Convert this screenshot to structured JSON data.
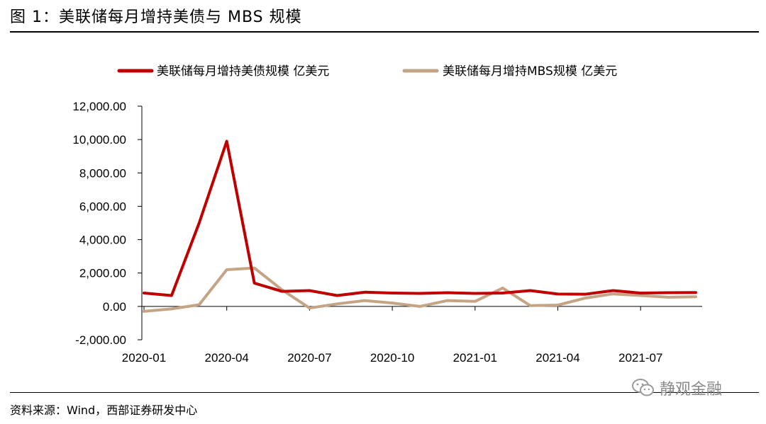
{
  "figure": {
    "title": "图 1：美联储每月增持美债与 MBS 规模",
    "source": "资料来源：Wind，西部证券研发中心",
    "watermark": "静观金融"
  },
  "chart_data": {
    "type": "line",
    "title": "",
    "xlabel": "",
    "ylabel": "",
    "ylim": [
      -2000,
      12000
    ],
    "yticks": [
      -2000,
      0,
      2000,
      4000,
      6000,
      8000,
      10000,
      12000
    ],
    "ytick_labels": [
      "-2,000.00",
      "0.00",
      "2,000.00",
      "4,000.00",
      "6,000.00",
      "8,000.00",
      "10,000.00",
      "12,000.00"
    ],
    "x": [
      "2020-01",
      "2020-02",
      "2020-03",
      "2020-04",
      "2020-05",
      "2020-06",
      "2020-07",
      "2020-08",
      "2020-09",
      "2020-10",
      "2020-11",
      "2020-12",
      "2021-01",
      "2021-02",
      "2021-03",
      "2021-04",
      "2021-05",
      "2021-06",
      "2021-07",
      "2021-08",
      "2021-09"
    ],
    "xtick_labels": [
      "2020-01",
      "2020-04",
      "2020-07",
      "2020-10",
      "2021-01",
      "2021-04",
      "2021-07"
    ],
    "legend_position": "top",
    "series": [
      {
        "name": "美联储每月增持美债规模 亿美元",
        "color": "#c00000",
        "values": [
          800,
          650,
          5000,
          9900,
          1400,
          900,
          950,
          650,
          850,
          800,
          780,
          820,
          780,
          800,
          950,
          740,
          730,
          950,
          800,
          820,
          830
        ]
      },
      {
        "name": "美联储每月增持MBS规模 亿美元",
        "color": "#c4a484",
        "values": [
          -300,
          -150,
          100,
          2200,
          2300,
          1000,
          -100,
          150,
          350,
          200,
          0,
          350,
          300,
          1100,
          50,
          80,
          500,
          750,
          650,
          550,
          580
        ]
      }
    ]
  }
}
